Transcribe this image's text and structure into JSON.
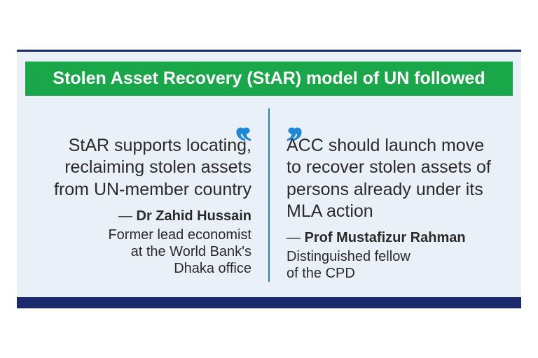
{
  "colors": {
    "frame_bg": "#eaf0f7",
    "title_bg": "#1aa74a",
    "title_text": "#ffffff",
    "divider": "#1e88d6",
    "quote_mark": "#1e88d6",
    "body_text": "#2a2a2a",
    "attrib_text": "#2a2a2a",
    "bottom_bar": "#1a2a6c"
  },
  "typography": {
    "title_fontsize": 25,
    "quote_mark_fontsize": 64,
    "quote_fontsize": 25,
    "attrib_fontsize": 20,
    "title_weight": 700,
    "name_weight": 700
  },
  "title": "Stolen Asset Recovery (StAR) model of UN followed",
  "left": {
    "quote": "StAR supports locating, reclaiming stolen assets from UN-member country",
    "dash": "— ",
    "name": "Dr Zahid Hussain",
    "title_line1": "Former lead economist",
    "title_line2": "at the World Bank's",
    "title_line3": "Dhaka office"
  },
  "right": {
    "quote": "ACC should launch move to recover stolen assets of persons already under its MLA action",
    "dash": "— ",
    "name": "Prof Mustafizur Rahman",
    "title_line1": "Distinguished fellow",
    "title_line2": "of the CPD"
  }
}
